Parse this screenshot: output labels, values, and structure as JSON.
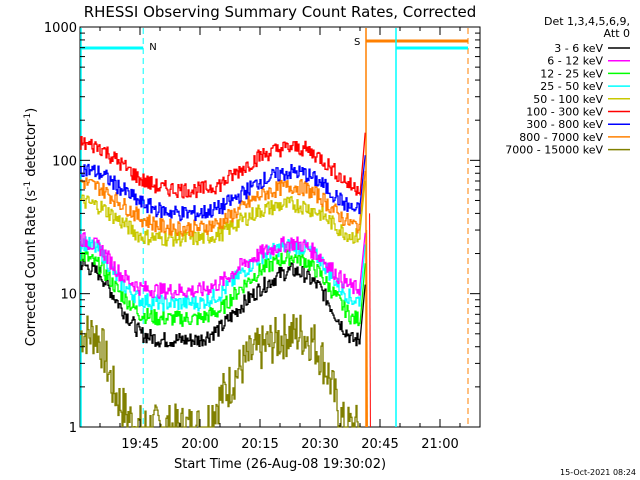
{
  "chart_data": {
    "type": "line",
    "title": "RHESSI Observing Summary Count Rates, Corrected",
    "xlabel": "Start Time (26-Aug-08 19:30:02)",
    "ylabel_main": "Corrected Count Rate (s",
    "ylabel_sup1": "-1",
    "ylabel_mid": " detector",
    "ylabel_sup2": "-1",
    "ylabel_end": ")",
    "yscale": "log",
    "ylim": [
      1,
      1000
    ],
    "xlim": [
      "19:30",
      "21:10"
    ],
    "x_tick_labels": [
      {
        "t": 105,
        "label": "19:45"
      },
      {
        "t": 120,
        "label": "20:00"
      },
      {
        "t": 135,
        "label": "20:15"
      },
      {
        "t": 150,
        "label": "20:30"
      },
      {
        "t": 165,
        "label": "20:45"
      },
      {
        "t": 180,
        "label": "21:00"
      }
    ],
    "y_tick_labels": [
      {
        "v": 1,
        "label": "1"
      },
      {
        "v": 10,
        "label": "10"
      },
      {
        "v": 100,
        "label": "100"
      },
      {
        "v": 1000,
        "label": "1000"
      }
    ],
    "legend_position": "right",
    "legend_header": [
      "Det 1,3,4,5,6,9,",
      "Att 0"
    ],
    "series": [
      {
        "name": "3 - 6 keV",
        "color": "#000000",
        "points": [
          [
            90,
            17
          ],
          [
            95,
            14
          ],
          [
            100,
            8
          ],
          [
            105,
            5
          ],
          [
            110,
            4.5
          ],
          [
            115,
            4.5
          ],
          [
            120,
            4.5
          ],
          [
            125,
            5.5
          ],
          [
            130,
            8
          ],
          [
            135,
            11
          ],
          [
            140,
            14
          ],
          [
            143,
            15
          ],
          [
            146,
            14
          ],
          [
            150,
            11
          ],
          [
            155,
            6
          ],
          [
            158,
            4.5
          ],
          [
            160,
            4.5
          ]
        ]
      },
      {
        "name": "6 - 12 keV",
        "color": "#ff00ff",
        "points": [
          [
            90,
            26
          ],
          [
            95,
            22
          ],
          [
            100,
            14
          ],
          [
            105,
            11
          ],
          [
            110,
            10.5
          ],
          [
            115,
            10.5
          ],
          [
            120,
            10.5
          ],
          [
            125,
            12
          ],
          [
            130,
            16
          ],
          [
            135,
            20
          ],
          [
            140,
            23
          ],
          [
            143,
            24
          ],
          [
            146,
            23
          ],
          [
            150,
            19
          ],
          [
            155,
            13
          ],
          [
            158,
            11
          ],
          [
            160,
            11
          ]
        ]
      },
      {
        "name": "12 - 25 keV",
        "color": "#00ff00",
        "points": [
          [
            90,
            20
          ],
          [
            95,
            16
          ],
          [
            100,
            10
          ],
          [
            105,
            7
          ],
          [
            110,
            6.5
          ],
          [
            115,
            6.5
          ],
          [
            120,
            6.5
          ],
          [
            125,
            7.5
          ],
          [
            130,
            11
          ],
          [
            135,
            15
          ],
          [
            140,
            18
          ],
          [
            143,
            19
          ],
          [
            146,
            18
          ],
          [
            150,
            14
          ],
          [
            155,
            8.5
          ],
          [
            158,
            6.5
          ],
          [
            160,
            6.5
          ]
        ]
      },
      {
        "name": "25 - 50 keV",
        "color": "#00ffff",
        "points": [
          [
            90,
            25
          ],
          [
            95,
            21
          ],
          [
            100,
            12
          ],
          [
            105,
            9
          ],
          [
            110,
            8.5
          ],
          [
            115,
            8.5
          ],
          [
            120,
            8.5
          ],
          [
            125,
            10
          ],
          [
            130,
            14
          ],
          [
            135,
            19
          ],
          [
            140,
            22
          ],
          [
            143,
            23
          ],
          [
            146,
            22
          ],
          [
            150,
            18
          ],
          [
            155,
            11
          ],
          [
            158,
            9
          ],
          [
            160,
            9
          ]
        ]
      },
      {
        "name": "50 - 100 keV",
        "color": "#c8c800",
        "points": [
          [
            90,
            50
          ],
          [
            95,
            45
          ],
          [
            100,
            35
          ],
          [
            105,
            27
          ],
          [
            110,
            26
          ],
          [
            115,
            26
          ],
          [
            120,
            26
          ],
          [
            125,
            28
          ],
          [
            130,
            35
          ],
          [
            135,
            42
          ],
          [
            140,
            46
          ],
          [
            143,
            47
          ],
          [
            146,
            45
          ],
          [
            150,
            40
          ],
          [
            155,
            30
          ],
          [
            158,
            27
          ],
          [
            160,
            27
          ]
        ]
      },
      {
        "name": "100 - 300 keV",
        "color": "#ff0000",
        "points": [
          [
            90,
            135
          ],
          [
            95,
            125
          ],
          [
            100,
            95
          ],
          [
            105,
            72
          ],
          [
            110,
            62
          ],
          [
            115,
            60
          ],
          [
            120,
            60
          ],
          [
            125,
            66
          ],
          [
            130,
            85
          ],
          [
            135,
            108
          ],
          [
            140,
            122
          ],
          [
            143,
            125
          ],
          [
            146,
            122
          ],
          [
            150,
            105
          ],
          [
            155,
            75
          ],
          [
            158,
            63
          ],
          [
            160,
            62
          ]
        ]
      },
      {
        "name": "300 - 800 keV",
        "color": "#0000ff",
        "points": [
          [
            90,
            88
          ],
          [
            95,
            80
          ],
          [
            100,
            62
          ],
          [
            105,
            48
          ],
          [
            110,
            42
          ],
          [
            115,
            40
          ],
          [
            120,
            40
          ],
          [
            125,
            44
          ],
          [
            130,
            55
          ],
          [
            135,
            70
          ],
          [
            140,
            79
          ],
          [
            143,
            82
          ],
          [
            146,
            80
          ],
          [
            150,
            68
          ],
          [
            155,
            50
          ],
          [
            158,
            43
          ],
          [
            160,
            42
          ]
        ]
      },
      {
        "name": "800 - 7000 keV",
        "color": "#ff8000",
        "points": [
          [
            90,
            70
          ],
          [
            95,
            62
          ],
          [
            100,
            48
          ],
          [
            105,
            37
          ],
          [
            110,
            32
          ],
          [
            115,
            31
          ],
          [
            120,
            31
          ],
          [
            125,
            34
          ],
          [
            130,
            43
          ],
          [
            135,
            55
          ],
          [
            140,
            62
          ],
          [
            143,
            64
          ],
          [
            146,
            62
          ],
          [
            150,
            53
          ],
          [
            155,
            38
          ],
          [
            158,
            33
          ],
          [
            160,
            32
          ]
        ]
      },
      {
        "name": "7000 - 15000 keV",
        "color": "#808000",
        "points": [
          [
            90,
            5
          ],
          [
            94,
            5
          ],
          [
            96,
            3.5
          ],
          [
            98,
            2
          ],
          [
            100,
            1.5
          ],
          [
            102,
            1.2
          ],
          [
            104,
            1
          ],
          [
            110,
            1
          ],
          [
            118,
            1
          ],
          [
            121,
            1
          ],
          [
            124,
            1.5
          ],
          [
            127,
            2
          ],
          [
            130,
            2.8
          ],
          [
            133,
            3.5
          ],
          [
            136,
            4
          ],
          [
            139,
            4.5
          ],
          [
            142,
            5
          ],
          [
            145,
            5
          ],
          [
            148,
            4.5
          ],
          [
            150,
            3.5
          ],
          [
            152,
            2.5
          ],
          [
            154,
            1.5
          ],
          [
            156,
            1
          ],
          [
            160,
            1
          ]
        ]
      }
    ],
    "annotations": [
      {
        "label": "N",
        "color": "#00ffff"
      },
      {
        "label": "S",
        "color": "#ff8000"
      }
    ],
    "footer": "15-Oct-2021 08:24"
  }
}
